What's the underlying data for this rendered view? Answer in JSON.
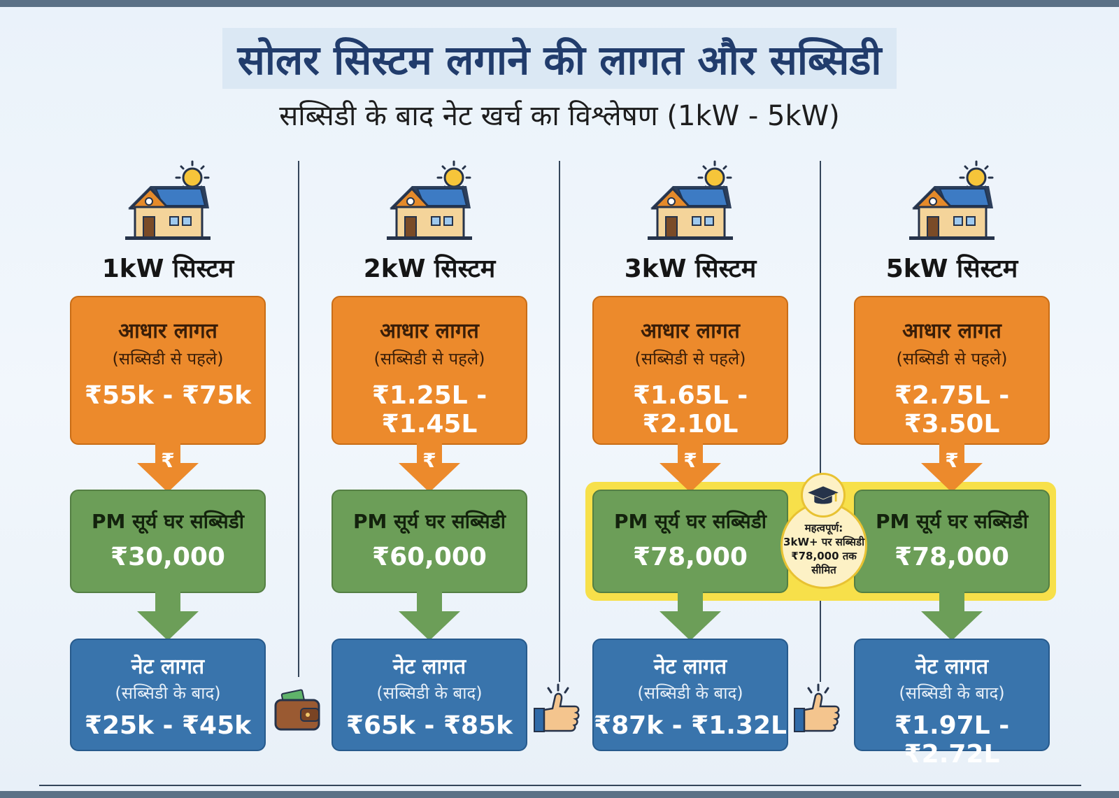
{
  "title": "सोलर सिस्टम लगाने की लागत और सब्सिडी",
  "subtitle": "सब्सिडी के बाद नेट खर्च का विश्लेषण (1kW - 5kW)",
  "arrow_symbol": "₹",
  "systems": [
    {
      "label": "1kW सिस्टम",
      "base": {
        "heading": "आधार लागत",
        "note": "(सब्सिडी से पहले)",
        "value": "₹55k - ₹75k"
      },
      "subsidy": {
        "heading": "PM सूर्य घर सब्सिडी",
        "value": "₹30,000"
      },
      "net": {
        "heading": "नेट लागत",
        "note": "(सब्सिडी के बाद)",
        "value": "₹25k - ₹45k"
      }
    },
    {
      "label": "2kW सिस्टम",
      "base": {
        "heading": "आधार लागत",
        "note": "(सब्सिडी से पहले)",
        "value": "₹1.25L - ₹1.45L"
      },
      "subsidy": {
        "heading": "PM सूर्य घर सब्सिडी",
        "value": "₹60,000"
      },
      "net": {
        "heading": "नेट लागत",
        "note": "(सब्सिडी के बाद)",
        "value": "₹65k - ₹85k"
      }
    },
    {
      "label": "3kW सिस्टम",
      "base": {
        "heading": "आधार लागत",
        "note": "(सब्सिडी से पहले)",
        "value": "₹1.65L - ₹2.10L"
      },
      "subsidy": {
        "heading": "PM सूर्य घर सब्सिडी",
        "value": "₹78,000"
      },
      "net": {
        "heading": "नेट लागत",
        "note": "(सब्सिडी के बाद)",
        "value": "₹87k - ₹1.32L"
      }
    },
    {
      "label": "5kW सिस्टम",
      "base": {
        "heading": "आधार लागत",
        "note": "(सब्सिडी से पहले)",
        "value": "₹2.75L - ₹3.50L"
      },
      "subsidy": {
        "heading": "PM सूर्य घर सब्सिडी",
        "value": "₹78,000"
      },
      "net": {
        "heading": "नेट लागत",
        "note": "(सब्सिडी के बाद)",
        "value": "₹1.97L - ₹2.72L"
      }
    }
  ],
  "note": {
    "line1": "महत्वपूर्ण:",
    "line2": "3kW+ पर सब्सिडी",
    "line3": "₹78,000 तक",
    "line4": "सीमित"
  },
  "icons": [
    "house-solar-icon",
    "sun-icon",
    "graduation-cap-icon",
    "wallet-icon",
    "thumbs-up-icon"
  ],
  "colors": {
    "title": "#213c6c",
    "base": "#ec8a2c",
    "subsidy": "#6c9e58",
    "net": "#3974ac",
    "highlight": "#f7e04a"
  }
}
